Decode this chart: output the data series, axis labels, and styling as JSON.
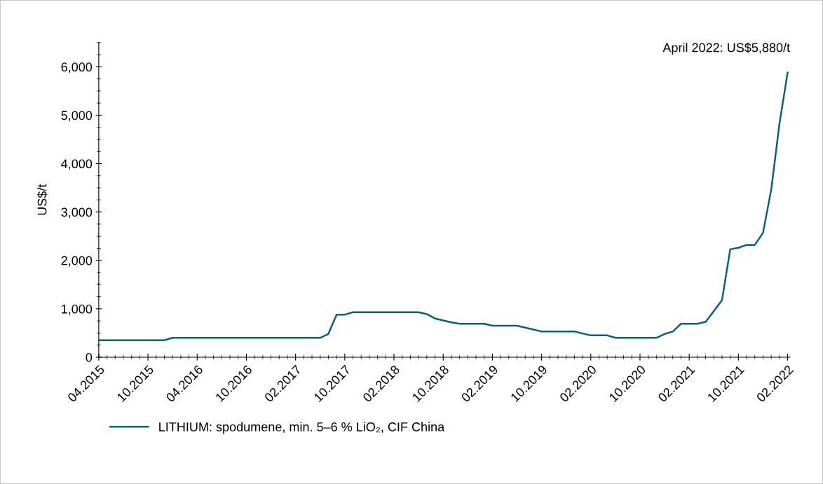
{
  "chart_data": {
    "type": "line",
    "ylabel": "US$/t",
    "categories": [
      "04.2015",
      null,
      null,
      null,
      null,
      null,
      "10.2015",
      null,
      null,
      null,
      null,
      null,
      "04.2016",
      null,
      null,
      null,
      null,
      null,
      "10.2016",
      null,
      null,
      null,
      null,
      null,
      "02.2017",
      null,
      null,
      null,
      null,
      null,
      "10.2017",
      null,
      null,
      null,
      null,
      null,
      "02.2018",
      null,
      null,
      null,
      null,
      null,
      "10.2018",
      null,
      null,
      null,
      null,
      null,
      "02.2019",
      null,
      null,
      null,
      null,
      null,
      "10.2019",
      null,
      null,
      null,
      null,
      null,
      "02.2020",
      null,
      null,
      null,
      null,
      null,
      "10.2020",
      null,
      null,
      null,
      null,
      null,
      "02.2021",
      null,
      null,
      null,
      null,
      null,
      "10.2021",
      null,
      null,
      null,
      null,
      null,
      "02.2022"
    ],
    "series": [
      {
        "name": "LITHIUM: spodumene, min. 5–6 % LiO₂, CIF China",
        "color": "#0b5f80",
        "values": [
          350,
          350,
          350,
          350,
          350,
          350,
          350,
          350,
          350,
          400,
          400,
          400,
          400,
          400,
          400,
          400,
          400,
          400,
          400,
          400,
          400,
          400,
          400,
          400,
          400,
          400,
          400,
          400,
          480,
          880,
          880,
          930,
          930,
          930,
          930,
          930,
          930,
          930,
          930,
          930,
          890,
          800,
          760,
          720,
          690,
          690,
          690,
          690,
          650,
          650,
          650,
          650,
          610,
          570,
          530,
          530,
          530,
          530,
          530,
          490,
          450,
          450,
          450,
          400,
          400,
          400,
          400,
          400,
          400,
          480,
          530,
          690,
          690,
          690,
          730,
          950,
          1180,
          2230,
          2260,
          2320,
          2320,
          2570,
          3460,
          4820,
          5880
        ]
      }
    ],
    "ylim": [
      0,
      6500
    ],
    "yticks": [
      {
        "value": 0,
        "label": "0"
      },
      {
        "value": 1000,
        "label": "1,000"
      },
      {
        "value": 2000,
        "label": "2,000"
      },
      {
        "value": 3000,
        "label": "3,000"
      },
      {
        "value": 4000,
        "label": "4,000"
      },
      {
        "value": 5000,
        "label": "5,000"
      },
      {
        "value": 6000,
        "label": "6,000"
      }
    ],
    "annotations": [
      "April 2022: US$5,880/t"
    ],
    "grid": false,
    "legend": "bottom left",
    "marker": "none",
    "line_style": "solid"
  }
}
